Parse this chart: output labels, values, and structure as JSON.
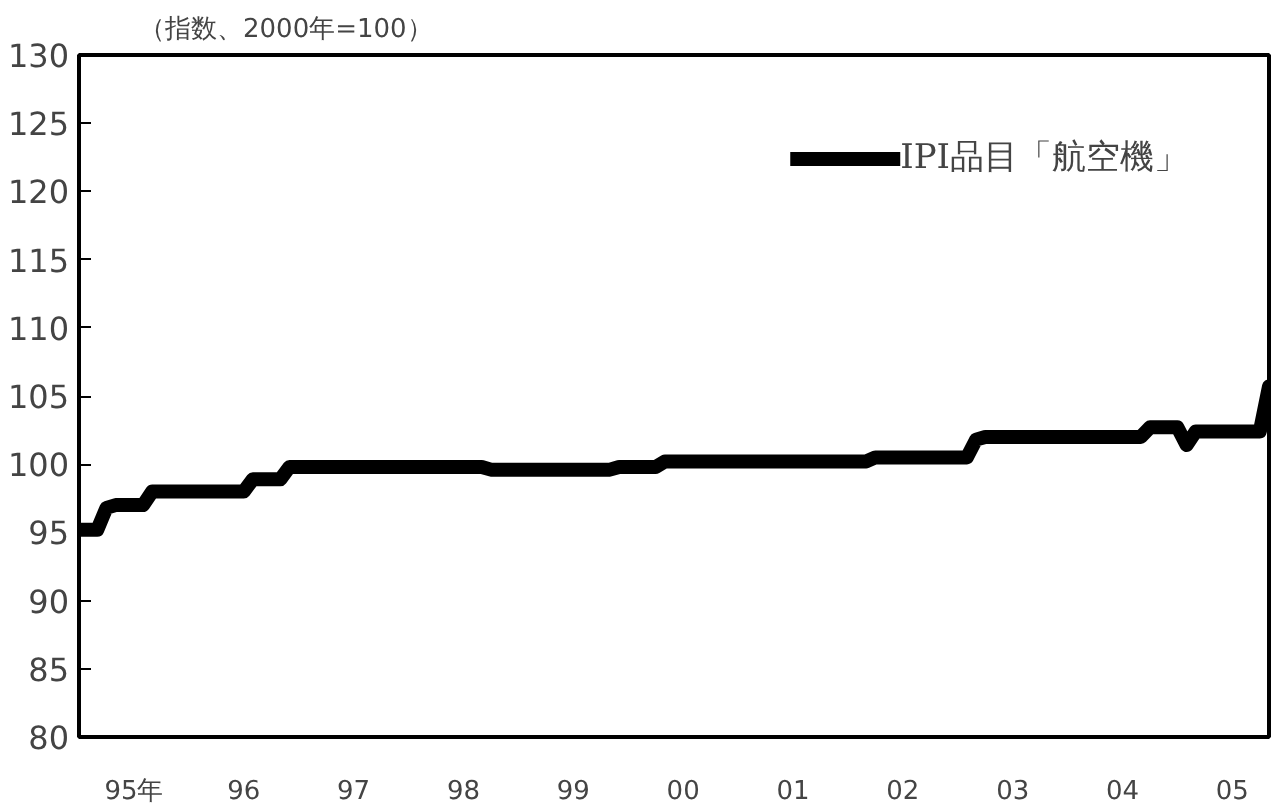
{
  "chart_data": {
    "type": "line",
    "title": "（指数、2000年=100）",
    "categories": [
      null,
      null,
      null,
      null,
      null,
      null,
      "95年",
      null,
      null,
      null,
      null,
      null,
      null,
      null,
      null,
      null,
      null,
      null,
      "96",
      null,
      null,
      null,
      null,
      null,
      null,
      null,
      null,
      null,
      null,
      null,
      "97",
      null,
      null,
      null,
      null,
      null,
      null,
      null,
      null,
      null,
      null,
      null,
      "98",
      null,
      null,
      null,
      null,
      null,
      null,
      null,
      null,
      null,
      null,
      null,
      "99",
      null,
      null,
      null,
      null,
      null,
      null,
      null,
      null,
      null,
      null,
      null,
      "00",
      null,
      null,
      null,
      null,
      null,
      null,
      null,
      null,
      null,
      null,
      null,
      "01",
      null,
      null,
      null,
      null,
      null,
      null,
      null,
      null,
      null,
      null,
      null,
      "02",
      null,
      null,
      null,
      null,
      null,
      null,
      null,
      null,
      null,
      null,
      null,
      "03",
      null,
      null,
      null,
      null,
      null,
      null,
      null,
      null,
      null,
      null,
      null,
      "04",
      null,
      null,
      null,
      null,
      null,
      null,
      null,
      null,
      null,
      null,
      null,
      "05",
      null,
      null,
      null,
      null
    ],
    "series": [
      {
        "name": "IPI品目「航空機」",
        "color": "#000000",
        "values": [
          95.2,
          95.2,
          95.2,
          96.8,
          97.0,
          97.0,
          97.0,
          97.0,
          98.0,
          98.0,
          98.0,
          98.0,
          98.0,
          98.0,
          98.0,
          98.0,
          98.0,
          98.0,
          98.0,
          98.9,
          98.9,
          98.9,
          98.9,
          99.8,
          99.8,
          99.8,
          99.8,
          99.8,
          99.8,
          99.8,
          99.8,
          99.8,
          99.8,
          99.8,
          99.8,
          99.8,
          99.8,
          99.8,
          99.8,
          99.8,
          99.8,
          99.8,
          99.8,
          99.8,
          99.8,
          99.6,
          99.6,
          99.6,
          99.6,
          99.6,
          99.6,
          99.6,
          99.6,
          99.6,
          99.6,
          99.6,
          99.6,
          99.6,
          99.6,
          99.8,
          99.8,
          99.8,
          99.8,
          99.8,
          100.2,
          100.2,
          100.2,
          100.2,
          100.2,
          100.2,
          100.2,
          100.2,
          100.2,
          100.2,
          100.2,
          100.2,
          100.2,
          100.2,
          100.2,
          100.2,
          100.2,
          100.2,
          100.2,
          100.2,
          100.2,
          100.2,
          100.2,
          100.5,
          100.5,
          100.5,
          100.5,
          100.5,
          100.5,
          100.5,
          100.5,
          100.5,
          100.5,
          100.5,
          101.8,
          102.0,
          102.0,
          102.0,
          102.0,
          102.0,
          102.0,
          102.0,
          102.0,
          102.0,
          102.0,
          102.0,
          102.0,
          102.0,
          102.0,
          102.0,
          102.0,
          102.0,
          102.0,
          102.7,
          102.7,
          102.7,
          102.7,
          101.4,
          102.4,
          102.4,
          102.4,
          102.4,
          102.4,
          102.4,
          102.4,
          102.4,
          105.7
        ]
      }
    ],
    "ylim": [
      80,
      130
    ],
    "yticks": [
      80,
      85,
      90,
      95,
      100,
      105,
      110,
      115,
      120,
      125,
      130
    ],
    "grid": false,
    "legend": "top right",
    "marker": "none",
    "line_style": "solid"
  }
}
